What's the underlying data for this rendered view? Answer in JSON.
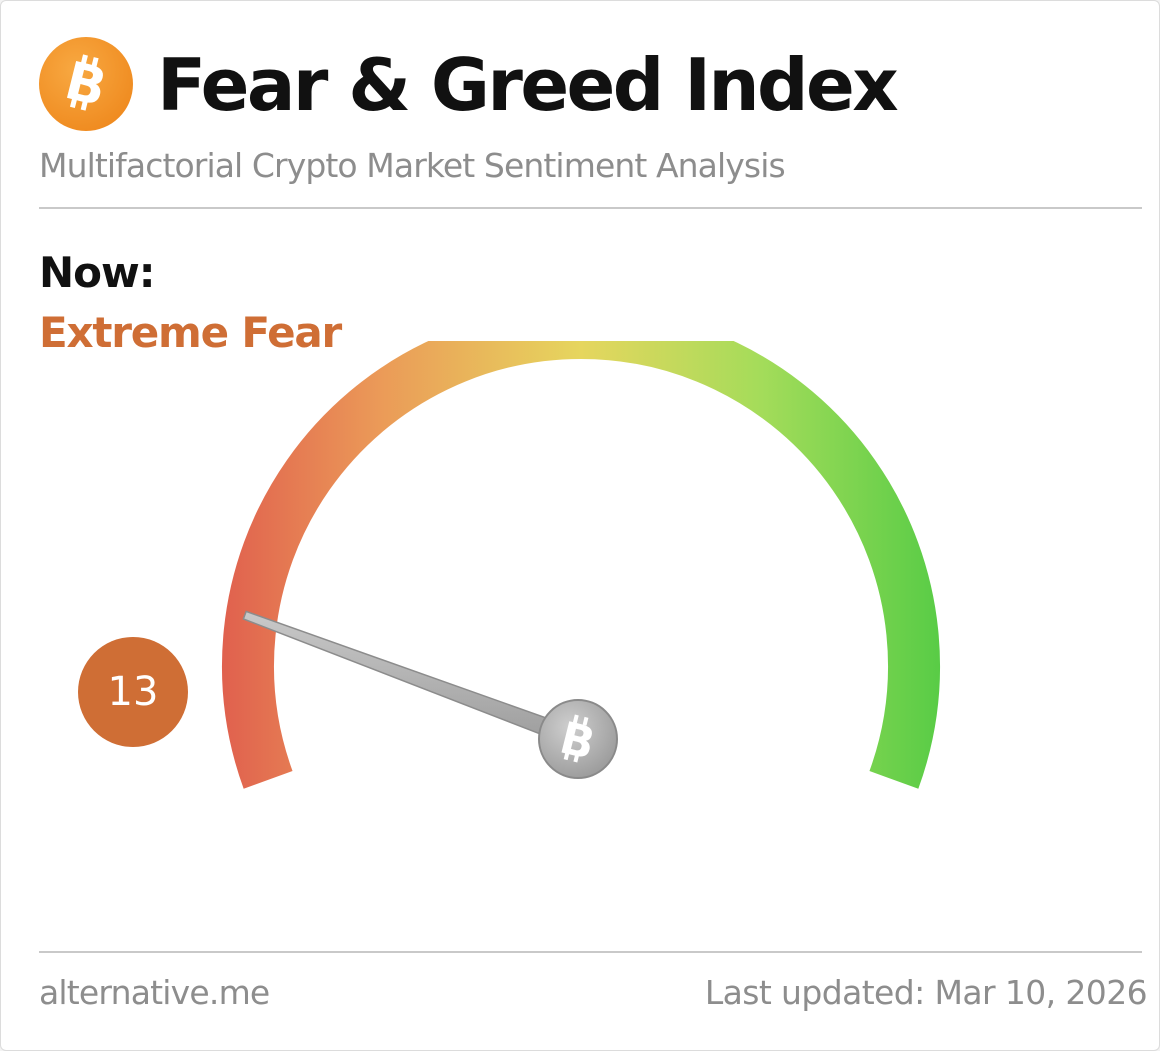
{
  "header": {
    "logo_icon": "bitcoin-icon",
    "title": "Fear & Greed Index",
    "subtitle": "Multifactorial Crypto Market Sentiment Analysis"
  },
  "status": {
    "now_label": "Now:",
    "classification": "Extreme Fear",
    "classification_color": "#cf6e35"
  },
  "gauge": {
    "value": "13",
    "min": 0,
    "max": 100,
    "badge_color": "#cf6e35",
    "gradient_colors": [
      "#e0604e",
      "#eb9a58",
      "#e6d65e",
      "#a4dc5a",
      "#58cc46"
    ],
    "needle_hub_icon": "bitcoin-icon"
  },
  "footer": {
    "source": "alternative.me",
    "last_updated": "Last updated: Mar 10, 2026"
  }
}
